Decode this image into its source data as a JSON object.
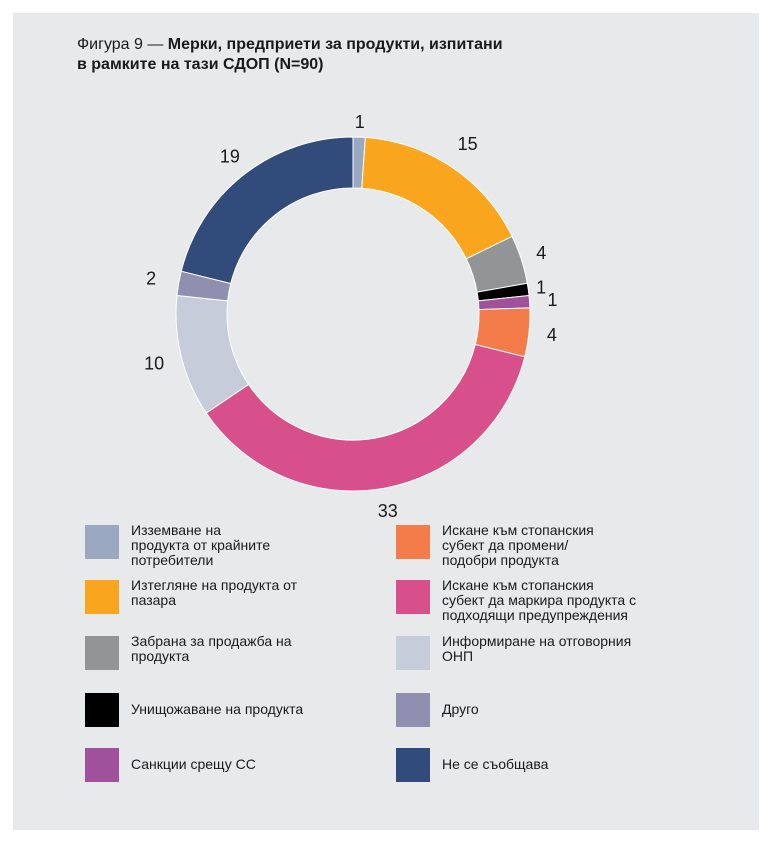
{
  "figure": {
    "prefix": "Фигура 9 — ",
    "title_line1": "Мерки, предприети за продукти, изпитани",
    "title_line2": "в рамките на тази СДОП (N=90)"
  },
  "chart_data": {
    "type": "pie",
    "donut": true,
    "total": 90,
    "slices": [
      {
        "label": "Изземване на продукта от крайните потребители",
        "value": 1,
        "color": "#9aa8c2"
      },
      {
        "label": "Изтегляне на продукта от пазара",
        "value": 15,
        "color": "#f9a51d"
      },
      {
        "label": "Забрана за продажба на продукта",
        "value": 4,
        "color": "#939496"
      },
      {
        "label": "Унищожаване на продукта",
        "value": 1,
        "color": "#000000"
      },
      {
        "label": "Санкции срещу СС",
        "value": 1,
        "color": "#a0519c"
      },
      {
        "label": "Искане към стопанския субект да промени/подобри продукта",
        "value": 4,
        "color": "#f47b4a"
      },
      {
        "label": "Искане към стопанския субект да маркира продукта с подходящи предупреждения",
        "value": 33,
        "color": "#d8508b"
      },
      {
        "label": "Информиране на отговорния ОНП",
        "value": 10,
        "color": "#c7ccdb"
      },
      {
        "label": "Друго",
        "value": 2,
        "color": "#8f8fb0"
      },
      {
        "label": "Не се съобщава",
        "value": 19,
        "color": "#314b7a"
      }
    ]
  },
  "legend": [
    {
      "lines": [
        "Изземване на",
        "продукта от крайните",
        "потребители"
      ],
      "color": "#9aa8c2"
    },
    {
      "lines": [
        "Искане към стопанския",
        "субект да промени/",
        "подобри продукта"
      ],
      "color": "#f47b4a"
    },
    {
      "lines": [
        "Изтегляне на продукта от",
        "пазара"
      ],
      "color": "#f9a51d"
    },
    {
      "lines": [
        "Искане към стопанския",
        "субект да маркира продукта с",
        "подходящи предупреждения"
      ],
      "color": "#d8508b"
    },
    {
      "lines": [
        "Забрана за продажба на",
        "продукта"
      ],
      "color": "#939496"
    },
    {
      "lines": [
        "Информиране на отговорния",
        "ОНП"
      ],
      "color": "#c7ccdb"
    },
    {
      "lines": [
        "Унищожаване на продукта"
      ],
      "color": "#000000"
    },
    {
      "lines": [
        "Друго"
      ],
      "color": "#8f8fb0"
    },
    {
      "lines": [
        "Санкции срещу СС"
      ],
      "color": "#a0519c"
    },
    {
      "lines": [
        "Не се съобщава"
      ],
      "color": "#314b7a"
    }
  ]
}
